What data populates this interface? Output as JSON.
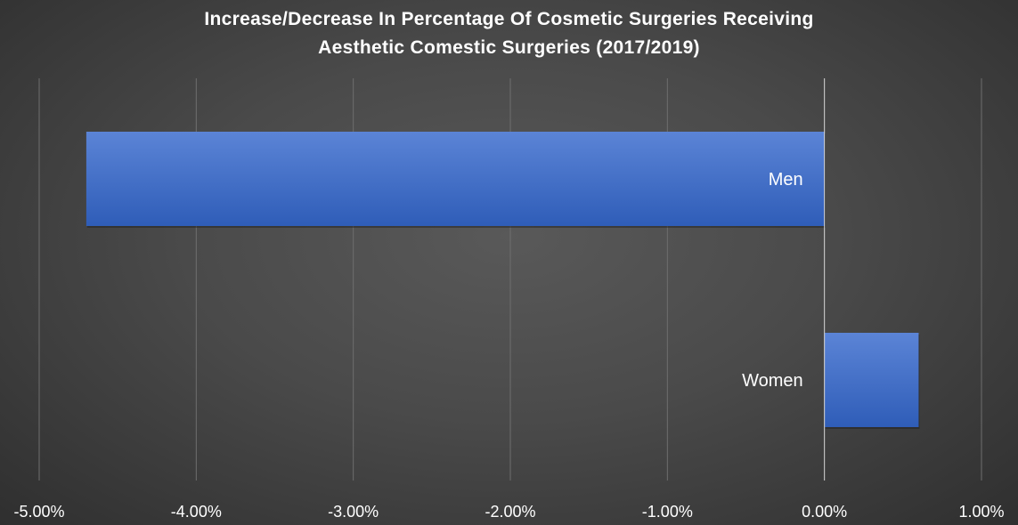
{
  "chart_data": {
    "type": "bar",
    "orientation": "horizontal",
    "title": {
      "line1": "Increase/Decrease In Percentage Of Cosmetic Surgeries Receiving",
      "line2": "Aesthetic Comestic Surgeries (2017/2019)"
    },
    "categories": [
      "Men",
      "Women"
    ],
    "values": [
      -4.7,
      0.6
    ],
    "value_unit": "%",
    "xlim": [
      -5,
      1
    ],
    "x_ticks": [
      -5,
      -4,
      -3,
      -2,
      -1,
      0,
      1
    ],
    "x_tick_labels": [
      "-5.00%",
      "-4.00%",
      "-3.00%",
      "-2.00%",
      "-1.00%",
      "0.00%",
      "1.00%"
    ],
    "grid": "vertical",
    "legend": "none",
    "colors": {
      "bar": "#4472c4",
      "bar_light": "#5b84d6",
      "bar_dark": "#2f5db8",
      "gridline": "#6e6e6e",
      "zero_line": "#d9d9d9",
      "text": "#ffffff"
    }
  }
}
